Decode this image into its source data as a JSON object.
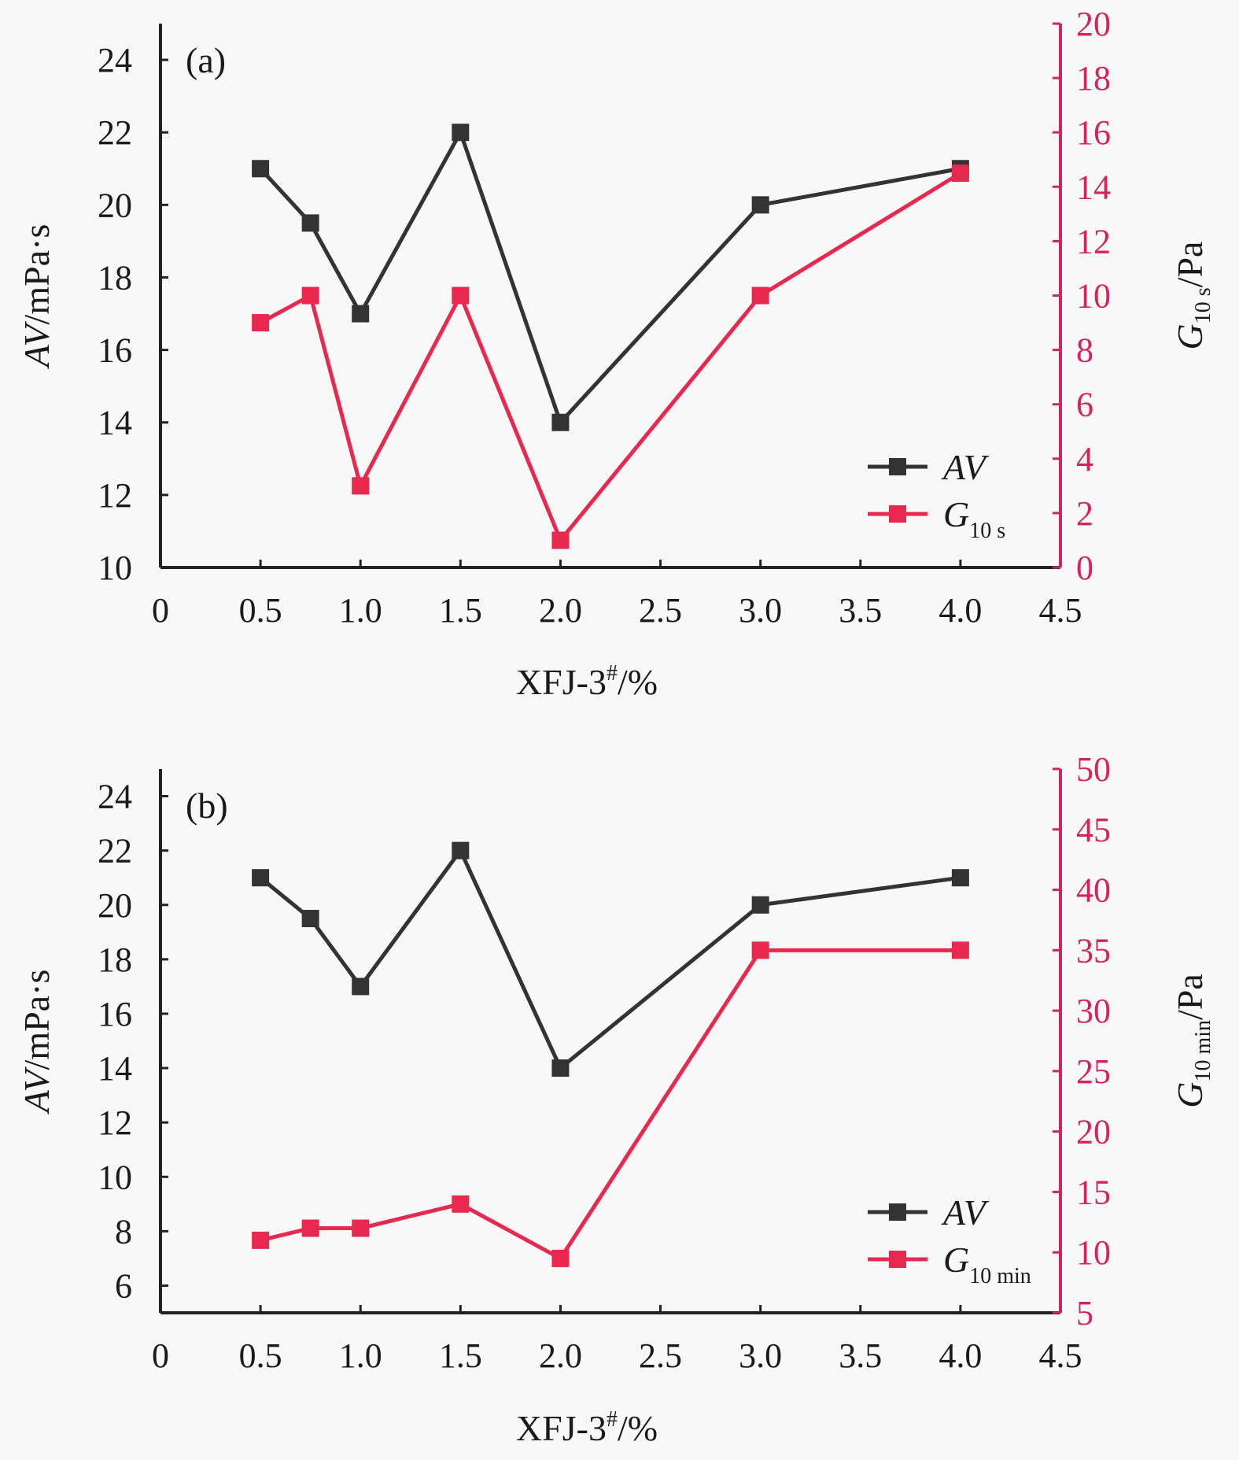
{
  "chart_data": [
    {
      "type": "line",
      "panel_label": "(a)",
      "xlabel": "XFJ-3",
      "xlabel_sup": "#",
      "xlabel_suffix": "/%",
      "ylabel_italic": "AV",
      "ylabel_rest": "/mPa·s",
      "y2label_main": "G",
      "y2label_sub": "10 s",
      "y2label_rest": "/Pa",
      "xlim": [
        0,
        4.5
      ],
      "xticks": [
        "0",
        "0.5",
        "1.0",
        "1.5",
        "2.0",
        "2.5",
        "3.0",
        "3.5",
        "4.0",
        "4.5"
      ],
      "ylim": [
        10,
        25
      ],
      "yticks": [
        "10",
        "12",
        "14",
        "16",
        "18",
        "20",
        "22",
        "24"
      ],
      "y2lim": [
        0,
        20
      ],
      "y2ticks": [
        "0",
        "2",
        "4",
        "6",
        "8",
        "10",
        "12",
        "14",
        "16",
        "18",
        "20"
      ],
      "x": [
        0.5,
        0.75,
        1.0,
        1.5,
        2.0,
        3.0,
        4.0
      ],
      "series": [
        {
          "name": "AV",
          "axis": "left",
          "color": "#333333",
          "values": [
            21,
            19.5,
            17,
            22,
            14,
            20,
            21
          ]
        },
        {
          "name": "G10 s",
          "axis": "right",
          "color": "#e8294f",
          "values": [
            9,
            10,
            3,
            10,
            1,
            10,
            14.5
          ]
        }
      ],
      "legend": [
        {
          "label_main": "AV",
          "label_sub": "",
          "italic": true
        },
        {
          "label_main": "G",
          "label_sub": "10 s",
          "italic": false
        }
      ],
      "legend_position": "bottom-right"
    },
    {
      "type": "line",
      "panel_label": "(b)",
      "xlabel": "XFJ-3",
      "xlabel_sup": "#",
      "xlabel_suffix": "/%",
      "ylabel_italic": "AV",
      "ylabel_rest": "/mPa·s",
      "y2label_main": "G",
      "y2label_sub": "10 min",
      "y2label_rest": "/Pa",
      "xlim": [
        0,
        4.5
      ],
      "xticks": [
        "0",
        "0.5",
        "1.0",
        "1.5",
        "2.0",
        "2.5",
        "3.0",
        "3.5",
        "4.0",
        "4.5"
      ],
      "ylim": [
        5,
        25
      ],
      "yticks": [
        "6",
        "8",
        "10",
        "12",
        "14",
        "16",
        "18",
        "20",
        "22",
        "24"
      ],
      "y2lim": [
        5,
        50
      ],
      "y2ticks": [
        "5",
        "10",
        "15",
        "20",
        "25",
        "30",
        "35",
        "40",
        "45",
        "50"
      ],
      "x": [
        0.5,
        0.75,
        1.0,
        1.5,
        2.0,
        3.0,
        4.0
      ],
      "series": [
        {
          "name": "AV",
          "axis": "left",
          "color": "#333333",
          "values": [
            21,
            19.5,
            17,
            22,
            14,
            20,
            21
          ]
        },
        {
          "name": "G10 min",
          "axis": "right",
          "color": "#e8294f",
          "values": [
            11,
            12,
            12,
            14,
            9.5,
            35,
            35
          ]
        }
      ],
      "legend": [
        {
          "label_main": "AV",
          "label_sub": "",
          "italic": true
        },
        {
          "label_main": "G",
          "label_sub": "10 min",
          "italic": false
        }
      ],
      "legend_position": "bottom-right"
    }
  ]
}
